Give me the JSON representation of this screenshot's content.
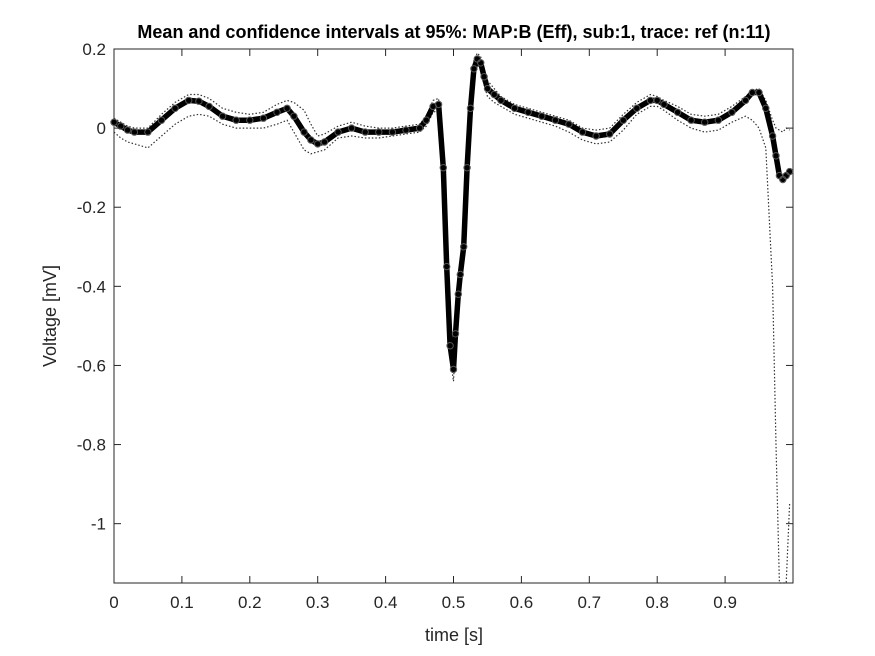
{
  "chart_data": {
    "type": "line",
    "title": "Mean and confidence intervals at 95%: MAP:B (Eff), sub:1, trace: ref (n:11)",
    "xlabel": "time [s]",
    "ylabel": "Voltage [mV]",
    "xlim": [
      0,
      1.0
    ],
    "ylim": [
      -1.15,
      0.2
    ],
    "xticks": [
      0,
      0.1,
      0.2,
      0.3,
      0.4,
      0.5,
      0.6,
      0.7,
      0.8,
      0.9
    ],
    "xtick_labels": [
      "0",
      "0.1",
      "0.2",
      "0.3",
      "0.4",
      "0.5",
      "0.6",
      "0.7",
      "0.8",
      "0.9"
    ],
    "yticks": [
      0.2,
      0,
      -0.2,
      -0.4,
      -0.6,
      -0.8,
      -1
    ],
    "ytick_labels": [
      "0.2",
      "0",
      "-0.2",
      "-0.4",
      "-0.6",
      "-0.8",
      "-1"
    ],
    "grid": false,
    "colors": {
      "mean": "#000000",
      "ci": "#333333"
    },
    "series": [
      {
        "role": "mean",
        "style": "thick-solid-with-markers",
        "x": [
          0.0,
          0.01,
          0.02,
          0.03,
          0.05,
          0.07,
          0.09,
          0.11,
          0.125,
          0.14,
          0.16,
          0.18,
          0.2,
          0.22,
          0.24,
          0.255,
          0.265,
          0.28,
          0.29,
          0.3,
          0.31,
          0.33,
          0.35,
          0.37,
          0.39,
          0.41,
          0.43,
          0.45,
          0.46,
          0.47,
          0.478,
          0.485,
          0.49,
          0.495,
          0.5,
          0.503,
          0.507,
          0.51,
          0.515,
          0.52,
          0.525,
          0.53,
          0.535,
          0.54,
          0.545,
          0.55,
          0.56,
          0.57,
          0.59,
          0.61,
          0.63,
          0.65,
          0.67,
          0.69,
          0.71,
          0.73,
          0.75,
          0.77,
          0.79,
          0.8,
          0.81,
          0.83,
          0.85,
          0.87,
          0.89,
          0.91,
          0.93,
          0.94,
          0.95,
          0.96,
          0.97,
          0.975,
          0.98,
          0.985,
          0.99,
          0.995
        ],
        "y": [
          0.015,
          0.005,
          -0.005,
          -0.01,
          -0.01,
          0.02,
          0.05,
          0.07,
          0.068,
          0.055,
          0.03,
          0.02,
          0.02,
          0.025,
          0.04,
          0.05,
          0.03,
          -0.01,
          -0.03,
          -0.04,
          -0.035,
          -0.01,
          0.0,
          -0.01,
          -0.01,
          -0.01,
          -0.005,
          0.0,
          0.02,
          0.055,
          0.06,
          -0.1,
          -0.35,
          -0.55,
          -0.61,
          -0.52,
          -0.42,
          -0.37,
          -0.3,
          -0.1,
          0.05,
          0.15,
          0.175,
          0.165,
          0.13,
          0.1,
          0.085,
          0.07,
          0.05,
          0.04,
          0.03,
          0.02,
          0.01,
          -0.01,
          -0.02,
          -0.015,
          0.02,
          0.05,
          0.07,
          0.07,
          0.06,
          0.04,
          0.02,
          0.015,
          0.02,
          0.04,
          0.07,
          0.09,
          0.09,
          0.05,
          -0.02,
          -0.07,
          -0.12,
          -0.13,
          -0.12,
          -0.11
        ]
      },
      {
        "role": "ci-upper",
        "style": "dotted",
        "x": [
          0.0,
          0.01,
          0.02,
          0.03,
          0.05,
          0.07,
          0.09,
          0.11,
          0.125,
          0.14,
          0.16,
          0.18,
          0.2,
          0.22,
          0.24,
          0.255,
          0.265,
          0.28,
          0.29,
          0.3,
          0.31,
          0.33,
          0.35,
          0.37,
          0.39,
          0.41,
          0.43,
          0.45,
          0.46,
          0.47,
          0.478,
          0.485,
          0.49,
          0.495,
          0.5,
          0.503,
          0.507,
          0.51,
          0.515,
          0.52,
          0.525,
          0.53,
          0.535,
          0.54,
          0.545,
          0.55,
          0.56,
          0.57,
          0.59,
          0.61,
          0.63,
          0.65,
          0.67,
          0.69,
          0.71,
          0.73,
          0.75,
          0.77,
          0.79,
          0.8,
          0.81,
          0.83,
          0.85,
          0.87,
          0.89,
          0.91,
          0.93,
          0.94,
          0.95,
          0.96,
          0.97,
          0.975,
          0.98,
          0.985,
          0.99,
          0.995
        ],
        "y": [
          0.025,
          0.015,
          0.005,
          0.0,
          0.0,
          0.035,
          0.065,
          0.085,
          0.085,
          0.075,
          0.05,
          0.04,
          0.035,
          0.04,
          0.06,
          0.07,
          0.065,
          0.045,
          0.01,
          -0.02,
          -0.015,
          0.005,
          0.015,
          0.005,
          0.0,
          0.0,
          0.005,
          0.01,
          0.03,
          0.07,
          0.075,
          -0.08,
          -0.32,
          -0.52,
          -0.59,
          -0.5,
          -0.4,
          -0.35,
          -0.28,
          -0.08,
          0.07,
          0.17,
          0.19,
          0.18,
          0.15,
          0.12,
          0.1,
          0.08,
          0.06,
          0.05,
          0.04,
          0.03,
          0.02,
          0.0,
          -0.005,
          0.0,
          0.035,
          0.065,
          0.085,
          0.08,
          0.07,
          0.055,
          0.035,
          0.03,
          0.035,
          0.055,
          0.08,
          0.095,
          0.1,
          0.07,
          0.02,
          0.0,
          -0.005,
          -0.01,
          0.0,
          -0.005
        ]
      },
      {
        "role": "ci-lower",
        "style": "dotted",
        "x": [
          0.0,
          0.01,
          0.02,
          0.03,
          0.05,
          0.07,
          0.09,
          0.11,
          0.125,
          0.14,
          0.16,
          0.18,
          0.2,
          0.22,
          0.24,
          0.255,
          0.265,
          0.28,
          0.29,
          0.3,
          0.31,
          0.33,
          0.35,
          0.37,
          0.39,
          0.41,
          0.43,
          0.45,
          0.46,
          0.47,
          0.478,
          0.485,
          0.49,
          0.495,
          0.5,
          0.503,
          0.507,
          0.51,
          0.515,
          0.52,
          0.525,
          0.53,
          0.535,
          0.54,
          0.545,
          0.55,
          0.56,
          0.57,
          0.59,
          0.61,
          0.63,
          0.65,
          0.67,
          0.69,
          0.71,
          0.73,
          0.75,
          0.77,
          0.79,
          0.8,
          0.81,
          0.83,
          0.85,
          0.87,
          0.89,
          0.91,
          0.93,
          0.94,
          0.95,
          0.96,
          0.97,
          0.975,
          0.98,
          0.985,
          0.99,
          0.995
        ],
        "y": [
          -0.01,
          -0.025,
          -0.035,
          -0.04,
          -0.05,
          -0.02,
          0.01,
          0.03,
          0.035,
          0.03,
          0.01,
          0.0,
          0.0,
          0.0,
          0.01,
          0.02,
          -0.01,
          -0.055,
          -0.065,
          -0.06,
          -0.055,
          -0.025,
          -0.02,
          -0.025,
          -0.025,
          -0.02,
          -0.015,
          -0.01,
          0.005,
          0.04,
          0.045,
          -0.12,
          -0.38,
          -0.58,
          -0.64,
          -0.55,
          -0.44,
          -0.39,
          -0.32,
          -0.12,
          0.03,
          0.13,
          0.16,
          0.15,
          0.11,
          0.08,
          0.065,
          0.055,
          0.035,
          0.025,
          0.015,
          0.005,
          -0.01,
          -0.03,
          -0.04,
          -0.035,
          -0.005,
          0.035,
          0.055,
          0.055,
          0.045,
          0.02,
          0.0,
          -0.01,
          -0.005,
          0.015,
          0.03,
          0.02,
          0.0,
          -0.05,
          -0.4,
          -0.8,
          -1.15,
          -1.15,
          -1.15,
          -0.95
        ]
      }
    ]
  }
}
